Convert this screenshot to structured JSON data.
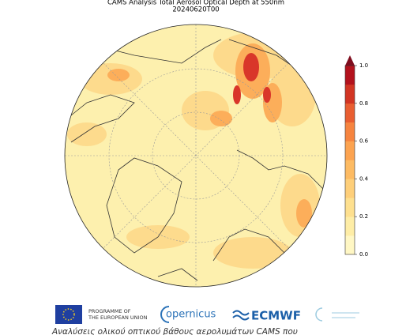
{
  "map": {
    "title": "CAMS Analysis Total Aerosol Optical Depth at 550nm",
    "date": "20240620T00",
    "colorbar": {
      "lim": [
        0,
        1
      ],
      "ticks": [
        {
          "value": 0,
          "label": "0.0"
        },
        {
          "value": 0.2,
          "label": "0.2"
        },
        {
          "value": 0.4,
          "label": "0.4"
        },
        {
          "value": 0.6,
          "label": "0.6"
        },
        {
          "value": 0.8,
          "label": "0.8"
        },
        {
          "value": 1,
          "label": "1.0"
        }
      ],
      "colors": [
        "#fff7c4",
        "#feeda6",
        "#fee08f",
        "#fecf7a",
        "#fdbb63",
        "#fca350",
        "#f6843f",
        "#e95e31",
        "#d23523",
        "#b3121d"
      ],
      "extend_color": "#7f0d1e"
    }
  },
  "footer": {
    "eu": [
      "PROGRAMME OF",
      "THE EUROPEAN UNION"
    ],
    "copernicus": "opernicus",
    "ecmwf": "ECMWF"
  },
  "caption": "Αναλύσεις ολικού οπτικού βάθους αερολυμάτων CAMS που"
}
